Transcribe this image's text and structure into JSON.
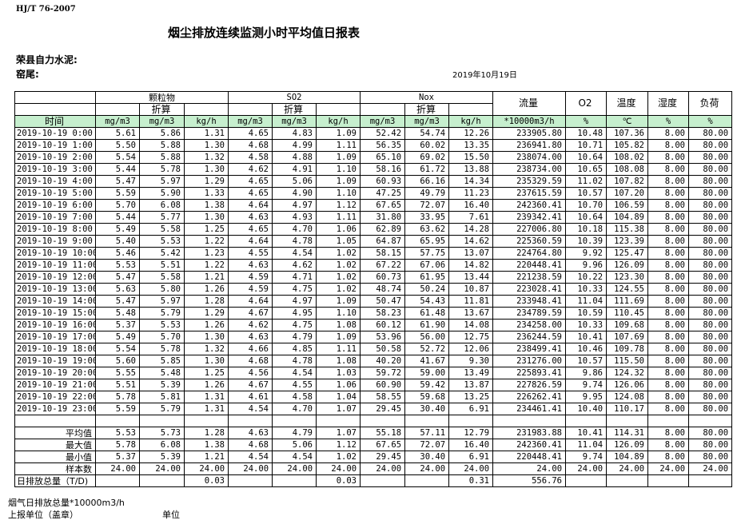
{
  "header": {
    "standard": "HJ/T  76-2007",
    "title": "烟尘排放连续监测小时平均值日报表",
    "company": "荣县自力水泥:",
    "kiln": "窑尾:",
    "date": "2019年10月19日"
  },
  "columns": {
    "groups": [
      "颗粒物",
      "SO2",
      "Nox"
    ],
    "converted": "折算",
    "time": "时间",
    "flow": "流量",
    "o2": "O2",
    "temp": "温度",
    "humidity": "湿度",
    "load": "负荷",
    "units": [
      "mg/m3",
      "mg/m3",
      "kg/h",
      "mg/m3",
      "mg/m3",
      "kg/h",
      "mg/m3",
      "mg/m3",
      "kg/h",
      "*10000m3/h",
      "%",
      "℃",
      "%",
      "%"
    ]
  },
  "rows": [
    [
      "2019-10-19 0:00",
      "5.61",
      "5.86",
      "1.31",
      "4.65",
      "4.83",
      "1.09",
      "52.42",
      "54.74",
      "12.26",
      "233905.80",
      "10.48",
      "107.36",
      "8.00",
      "80.00"
    ],
    [
      "2019-10-19 1:00",
      "5.50",
      "5.88",
      "1.30",
      "4.68",
      "4.99",
      "1.11",
      "56.35",
      "60.02",
      "13.35",
      "236941.80",
      "10.71",
      "105.82",
      "8.00",
      "80.00"
    ],
    [
      "2019-10-19 2:00",
      "5.54",
      "5.88",
      "1.32",
      "4.58",
      "4.88",
      "1.09",
      "65.10",
      "69.02",
      "15.50",
      "238074.00",
      "10.64",
      "108.02",
      "8.00",
      "80.00"
    ],
    [
      "2019-10-19 3:00",
      "5.44",
      "5.78",
      "1.30",
      "4.62",
      "4.91",
      "1.10",
      "58.16",
      "61.72",
      "13.88",
      "238734.00",
      "10.65",
      "108.08",
      "8.00",
      "80.00"
    ],
    [
      "2019-10-19 4:00",
      "5.47",
      "5.97",
      "1.29",
      "4.65",
      "5.06",
      "1.09",
      "60.93",
      "66.16",
      "14.34",
      "235329.59",
      "11.02",
      "107.82",
      "8.00",
      "80.00"
    ],
    [
      "2019-10-19 5:00",
      "5.59",
      "5.90",
      "1.33",
      "4.65",
      "4.90",
      "1.10",
      "47.25",
      "49.79",
      "11.23",
      "237615.59",
      "10.57",
      "107.20",
      "8.00",
      "80.00"
    ],
    [
      "2019-10-19 6:00",
      "5.70",
      "6.08",
      "1.38",
      "4.64",
      "4.97",
      "1.12",
      "67.65",
      "72.07",
      "16.40",
      "242360.41",
      "10.70",
      "106.59",
      "8.00",
      "80.00"
    ],
    [
      "2019-10-19 7:00",
      "5.44",
      "5.77",
      "1.30",
      "4.63",
      "4.93",
      "1.11",
      "31.80",
      "33.95",
      "7.61",
      "239342.41",
      "10.64",
      "104.89",
      "8.00",
      "80.00"
    ],
    [
      "2019-10-19 8:00",
      "5.49",
      "5.58",
      "1.25",
      "4.65",
      "4.70",
      "1.06",
      "62.89",
      "63.62",
      "14.28",
      "227006.80",
      "10.18",
      "115.38",
      "8.00",
      "80.00"
    ],
    [
      "2019-10-19 9:00",
      "5.40",
      "5.53",
      "1.22",
      "4.64",
      "4.78",
      "1.05",
      "64.87",
      "65.95",
      "14.62",
      "225360.59",
      "10.39",
      "123.39",
      "8.00",
      "80.00"
    ],
    [
      "2019-10-19 10:00",
      "5.46",
      "5.42",
      "1.23",
      "4.55",
      "4.54",
      "1.02",
      "58.15",
      "57.75",
      "13.07",
      "224764.80",
      "9.92",
      "125.47",
      "8.00",
      "80.00"
    ],
    [
      "2019-10-19 11:00",
      "5.53",
      "5.51",
      "1.22",
      "4.63",
      "4.62",
      "1.02",
      "67.22",
      "67.06",
      "14.82",
      "220448.41",
      "9.96",
      "126.09",
      "8.00",
      "80.00"
    ],
    [
      "2019-10-19 12:00",
      "5.47",
      "5.58",
      "1.21",
      "4.59",
      "4.71",
      "1.02",
      "60.73",
      "61.95",
      "13.44",
      "221238.59",
      "10.22",
      "123.30",
      "8.00",
      "80.00"
    ],
    [
      "2019-10-19 13:00",
      "5.63",
      "5.80",
      "1.26",
      "4.59",
      "4.75",
      "1.02",
      "48.74",
      "50.24",
      "10.87",
      "223028.41",
      "10.33",
      "124.55",
      "8.00",
      "80.00"
    ],
    [
      "2019-10-19 14:00",
      "5.47",
      "5.97",
      "1.28",
      "4.64",
      "4.97",
      "1.09",
      "50.47",
      "54.43",
      "11.81",
      "233948.41",
      "11.04",
      "111.69",
      "8.00",
      "80.00"
    ],
    [
      "2019-10-19 15:00",
      "5.48",
      "5.79",
      "1.29",
      "4.67",
      "4.95",
      "1.10",
      "58.23",
      "61.48",
      "13.67",
      "234789.59",
      "10.59",
      "110.45",
      "8.00",
      "80.00"
    ],
    [
      "2019-10-19 16:00",
      "5.37",
      "5.53",
      "1.26",
      "4.62",
      "4.75",
      "1.08",
      "60.12",
      "61.90",
      "14.08",
      "234258.00",
      "10.33",
      "109.68",
      "8.00",
      "80.00"
    ],
    [
      "2019-10-19 17:00",
      "5.49",
      "5.70",
      "1.30",
      "4.63",
      "4.79",
      "1.09",
      "53.96",
      "56.00",
      "12.75",
      "236244.59",
      "10.41",
      "107.69",
      "8.00",
      "80.00"
    ],
    [
      "2019-10-19 18:00",
      "5.54",
      "5.78",
      "1.32",
      "4.66",
      "4.85",
      "1.11",
      "50.58",
      "52.72",
      "12.06",
      "238499.41",
      "10.46",
      "109.78",
      "8.00",
      "80.00"
    ],
    [
      "2019-10-19 19:00",
      "5.60",
      "5.85",
      "1.30",
      "4.68",
      "4.78",
      "1.08",
      "40.20",
      "41.67",
      "9.30",
      "231276.00",
      "10.57",
      "115.50",
      "8.00",
      "80.00"
    ],
    [
      "2019-10-19 20:00",
      "5.55",
      "5.48",
      "1.25",
      "4.56",
      "4.54",
      "1.03",
      "59.72",
      "59.00",
      "13.49",
      "225893.41",
      "9.86",
      "124.32",
      "8.00",
      "80.00"
    ],
    [
      "2019-10-19 21:00",
      "5.51",
      "5.39",
      "1.26",
      "4.67",
      "4.55",
      "1.06",
      "60.90",
      "59.42",
      "13.87",
      "227826.59",
      "9.74",
      "126.06",
      "8.00",
      "80.00"
    ],
    [
      "2019-10-19 22:00",
      "5.78",
      "5.81",
      "1.31",
      "4.61",
      "4.58",
      "1.04",
      "58.55",
      "59.68",
      "13.25",
      "226262.41",
      "9.95",
      "124.08",
      "8.00",
      "80.00"
    ],
    [
      "2019-10-19 23:00",
      "5.59",
      "5.79",
      "1.31",
      "4.54",
      "4.70",
      "1.07",
      "29.45",
      "30.40",
      "6.91",
      "234461.41",
      "10.40",
      "110.17",
      "8.00",
      "80.00"
    ]
  ],
  "summary": [
    [
      "平均值",
      "5.53",
      "5.73",
      "1.28",
      "4.63",
      "4.79",
      "1.07",
      "55.18",
      "57.11",
      "12.79",
      "231983.88",
      "10.41",
      "114.31",
      "8.00",
      "80.00"
    ],
    [
      "最大值",
      "5.78",
      "6.08",
      "1.38",
      "4.68",
      "5.06",
      "1.12",
      "67.65",
      "72.07",
      "16.40",
      "242360.41",
      "11.04",
      "126.09",
      "8.00",
      "80.00"
    ],
    [
      "最小值",
      "5.37",
      "5.39",
      "1.21",
      "4.54",
      "4.54",
      "1.02",
      "29.45",
      "30.40",
      "6.91",
      "220448.41",
      "9.74",
      "104.89",
      "8.00",
      "80.00"
    ],
    [
      "样本数",
      "24.00",
      "24.00",
      "24.00",
      "24.00",
      "24.00",
      "24.00",
      "24.00",
      "24.00",
      "24.00",
      "24.00",
      "24.00",
      "24.00",
      "24.00",
      "24.00"
    ]
  ],
  "daily_total": [
    "日排放总量（T/D)",
    "",
    "",
    "0.03",
    "",
    "",
    "0.03",
    "",
    "",
    "0.31",
    "556.76",
    "",
    "",
    "",
    ""
  ],
  "footer": {
    "flue_gas_total": "烟气日排放总量*10000m3/h",
    "reporting_unit": "上报单位（盖章）",
    "unit": "单位"
  }
}
